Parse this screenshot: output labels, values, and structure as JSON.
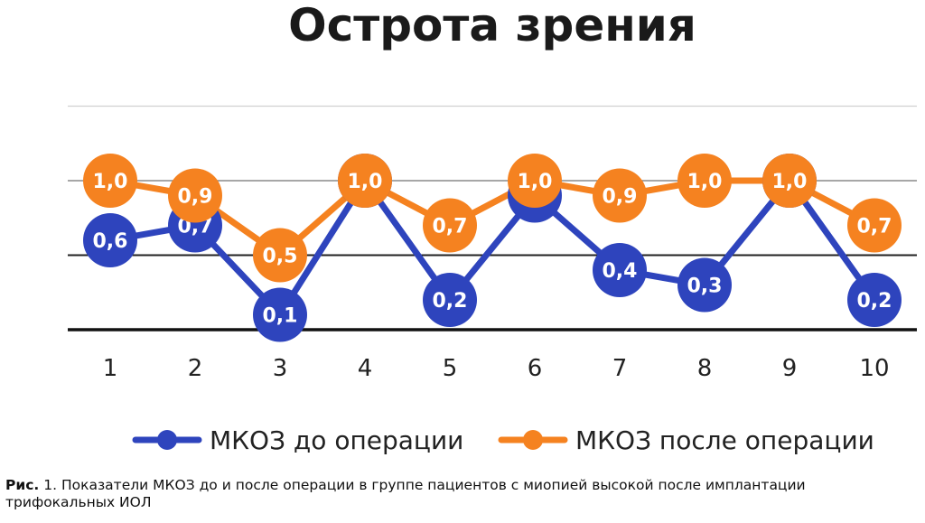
{
  "chart_data": {
    "type": "line",
    "title": "Острота зрения",
    "categories": [
      "1",
      "2",
      "3",
      "4",
      "5",
      "6",
      "7",
      "8",
      "9",
      "10"
    ],
    "series": [
      {
        "name": "МКОЗ до операции",
        "color": "#2e44bd",
        "values": [
          0.6,
          0.7,
          0.1,
          1.0,
          0.2,
          0.9,
          0.4,
          0.3,
          1.0,
          0.2
        ],
        "labels": [
          "0,6",
          "0,7",
          "0,1",
          "1,0",
          "0,2",
          "0,9",
          "0,4",
          "0,3",
          "1,0",
          "0,2"
        ]
      },
      {
        "name": "МКОЗ после операции",
        "color": "#f58220",
        "values": [
          1.0,
          0.9,
          0.5,
          1.0,
          0.7,
          1.0,
          0.9,
          1.0,
          1.0,
          0.7
        ],
        "labels": [
          "1,0",
          "0,9",
          "0,5",
          "1,0",
          "0,7",
          "1,0",
          "0,9",
          "1,0",
          "1,0",
          "0,7"
        ]
      }
    ],
    "ylim": [
      0,
      1.5
    ],
    "grid": true,
    "legend_placement": "bottom"
  },
  "caption": {
    "prefix": "Рис.",
    "text": " 1. Показатели МКОЗ до и после операции в группе пациентов с миопией высокой после имплантации трифокальных ИОЛ"
  }
}
